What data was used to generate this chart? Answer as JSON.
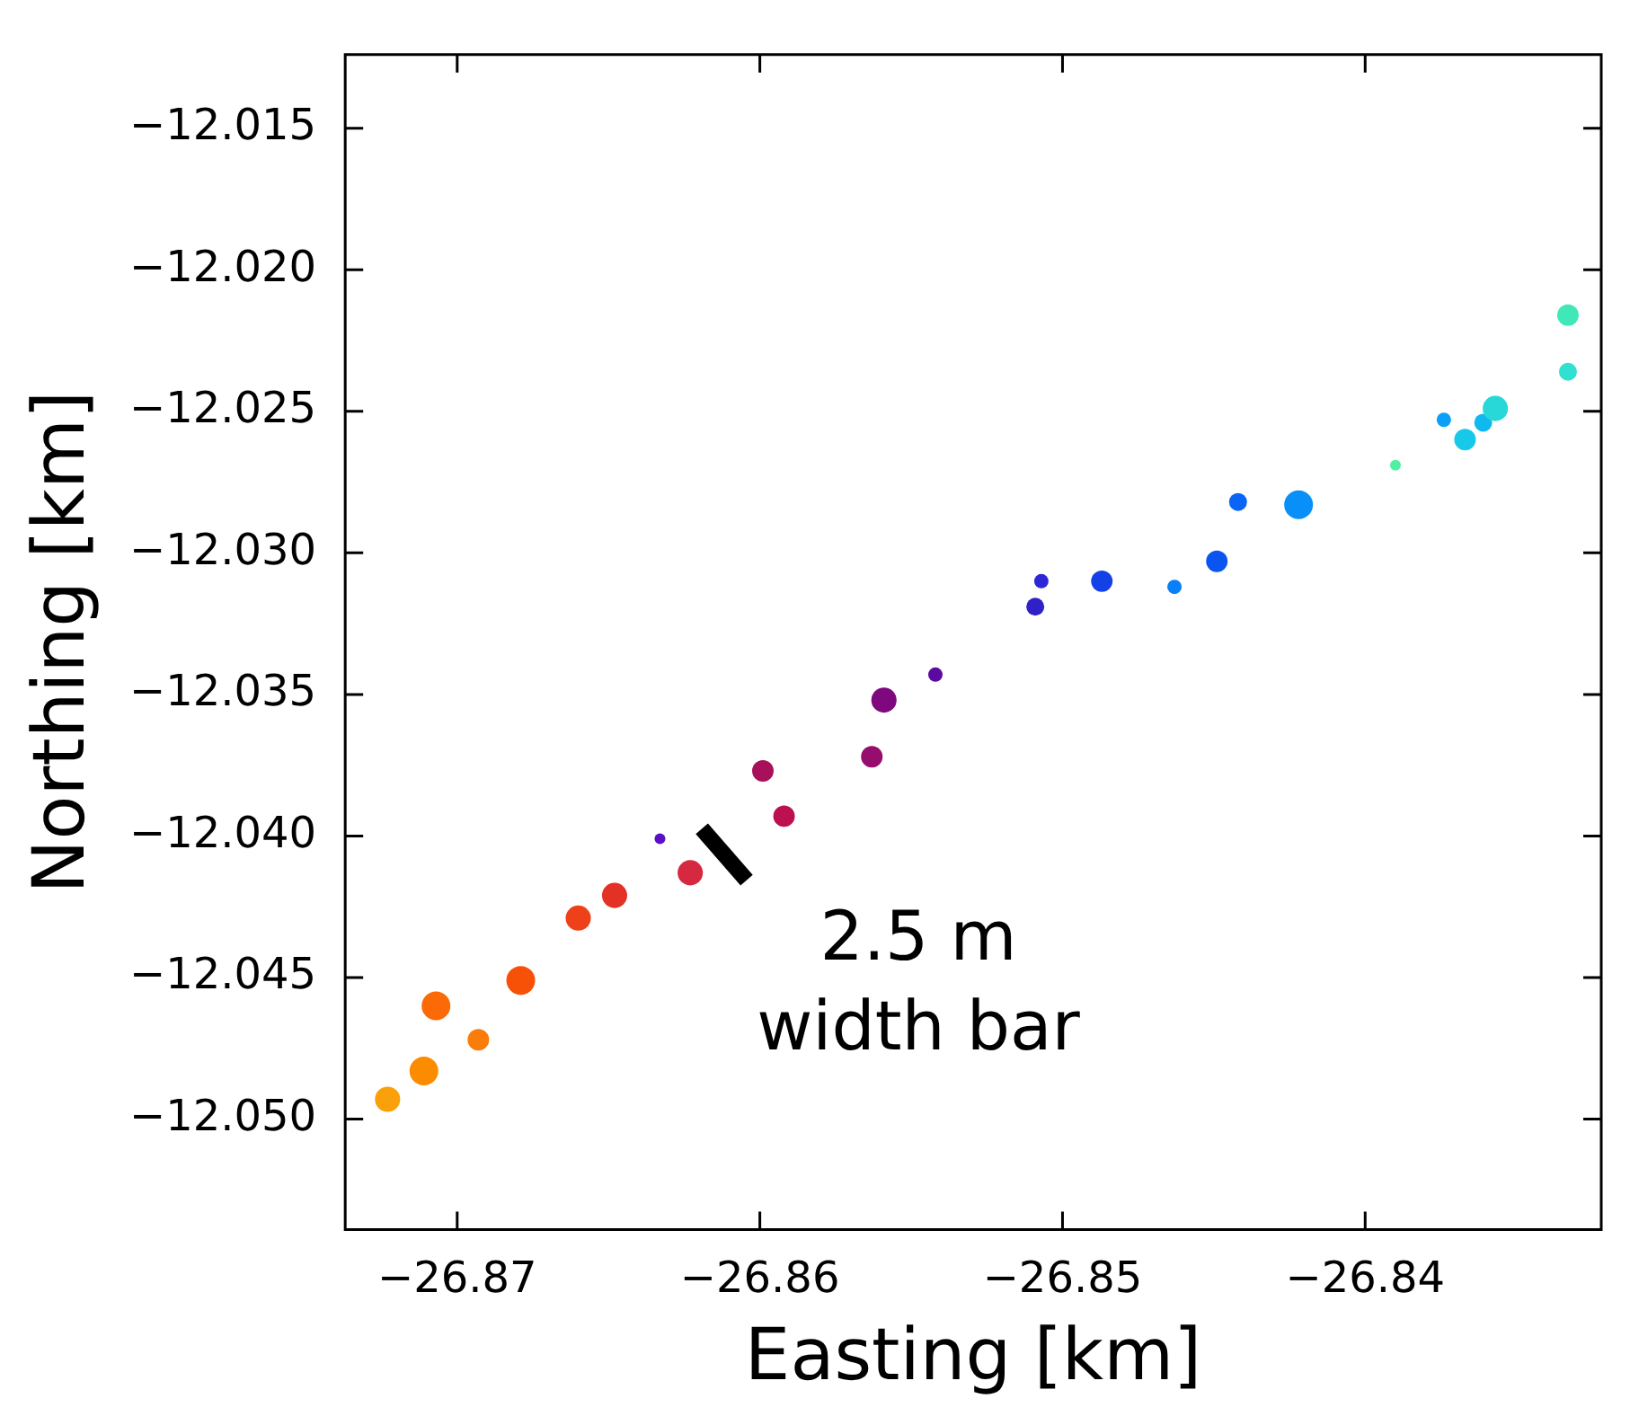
{
  "chart_data": {
    "type": "bubble",
    "xlabel": "Easting [km]",
    "ylabel": "Northing [km]",
    "x": [
      -26.8723,
      -26.8711,
      -26.8693,
      -26.8707,
      -26.8679,
      -26.866,
      -26.8648,
      -26.8623,
      -26.8633,
      -26.8592,
      -26.8599,
      -26.8563,
      -26.8559,
      -26.8542,
      -26.8509,
      -26.8507,
      -26.8487,
      -26.8463,
      -26.8449,
      -26.8442,
      -26.8422,
      -26.839,
      -26.8374,
      -26.8367,
      -26.8361,
      -26.8357,
      -26.8333,
      -26.8333
    ],
    "values": [
      -12.0493,
      -12.0483,
      -12.0472,
      -12.046,
      -12.0451,
      -12.0429,
      -12.0421,
      -12.0413,
      -12.0401,
      -12.0393,
      -12.0377,
      -12.0372,
      -12.0352,
      -12.0343,
      -12.0319,
      -12.031,
      -12.031,
      -12.0312,
      -12.0303,
      -12.0282,
      -12.0283,
      -12.0269,
      -12.0253,
      -12.026,
      -12.0254,
      -12.0249,
      -12.0216,
      -12.0236
    ],
    "sizes": [
      0.77,
      1,
      0.56,
      1,
      1,
      0.77,
      0.77,
      0.77,
      0.14,
      0.56,
      0.56,
      0.56,
      0.77,
      0.25,
      0.39,
      0.25,
      0.56,
      0.25,
      0.56,
      0.39,
      1,
      0.14,
      0.25,
      0.56,
      0.39,
      0.77,
      0.56,
      0.39
    ],
    "colors": [
      "#f9a00a",
      "#fb8c00",
      "#fa7c0a",
      "#fb6a06",
      "#f75108",
      "#ee4119",
      "#e33125",
      "#d62840",
      "#5a10c8",
      "#bc1050",
      "#a8105a",
      "#960d6e",
      "#80087e",
      "#5a0aa0",
      "#3020c8",
      "#2c28d8",
      "#1440e8",
      "#0a80f8",
      "#0a55f0",
      "#0a64f5",
      "#0890f8",
      "#50f0a0",
      "#0aa0f8",
      "#18c8e8",
      "#10b8f0",
      "#28d8d8",
      "#40e8b8",
      "#30e0d0"
    ],
    "xlim": [
      -26.8737,
      -26.8322
    ],
    "ylim": [
      -12.0539,
      -12.0124
    ],
    "xticks": [
      {
        "value": -26.87,
        "label": "−26.87"
      },
      {
        "value": -26.86,
        "label": "−26.86"
      },
      {
        "value": -26.85,
        "label": "−26.85"
      },
      {
        "value": -26.84,
        "label": "−26.84"
      }
    ],
    "yticks": [
      {
        "value": -12.05,
        "label": "−12.050"
      },
      {
        "value": -12.045,
        "label": "−12.045"
      },
      {
        "value": -12.04,
        "label": "−12.040"
      },
      {
        "value": -12.035,
        "label": "−12.035"
      },
      {
        "value": -12.03,
        "label": "−12.030"
      },
      {
        "value": -12.025,
        "label": "−12.025"
      },
      {
        "value": -12.02,
        "label": "−12.020"
      },
      {
        "value": -12.015,
        "label": "−12.015"
      }
    ],
    "annotations": [
      "2.5 m\nwidth bar"
    ],
    "legend": false,
    "grid": false
  }
}
